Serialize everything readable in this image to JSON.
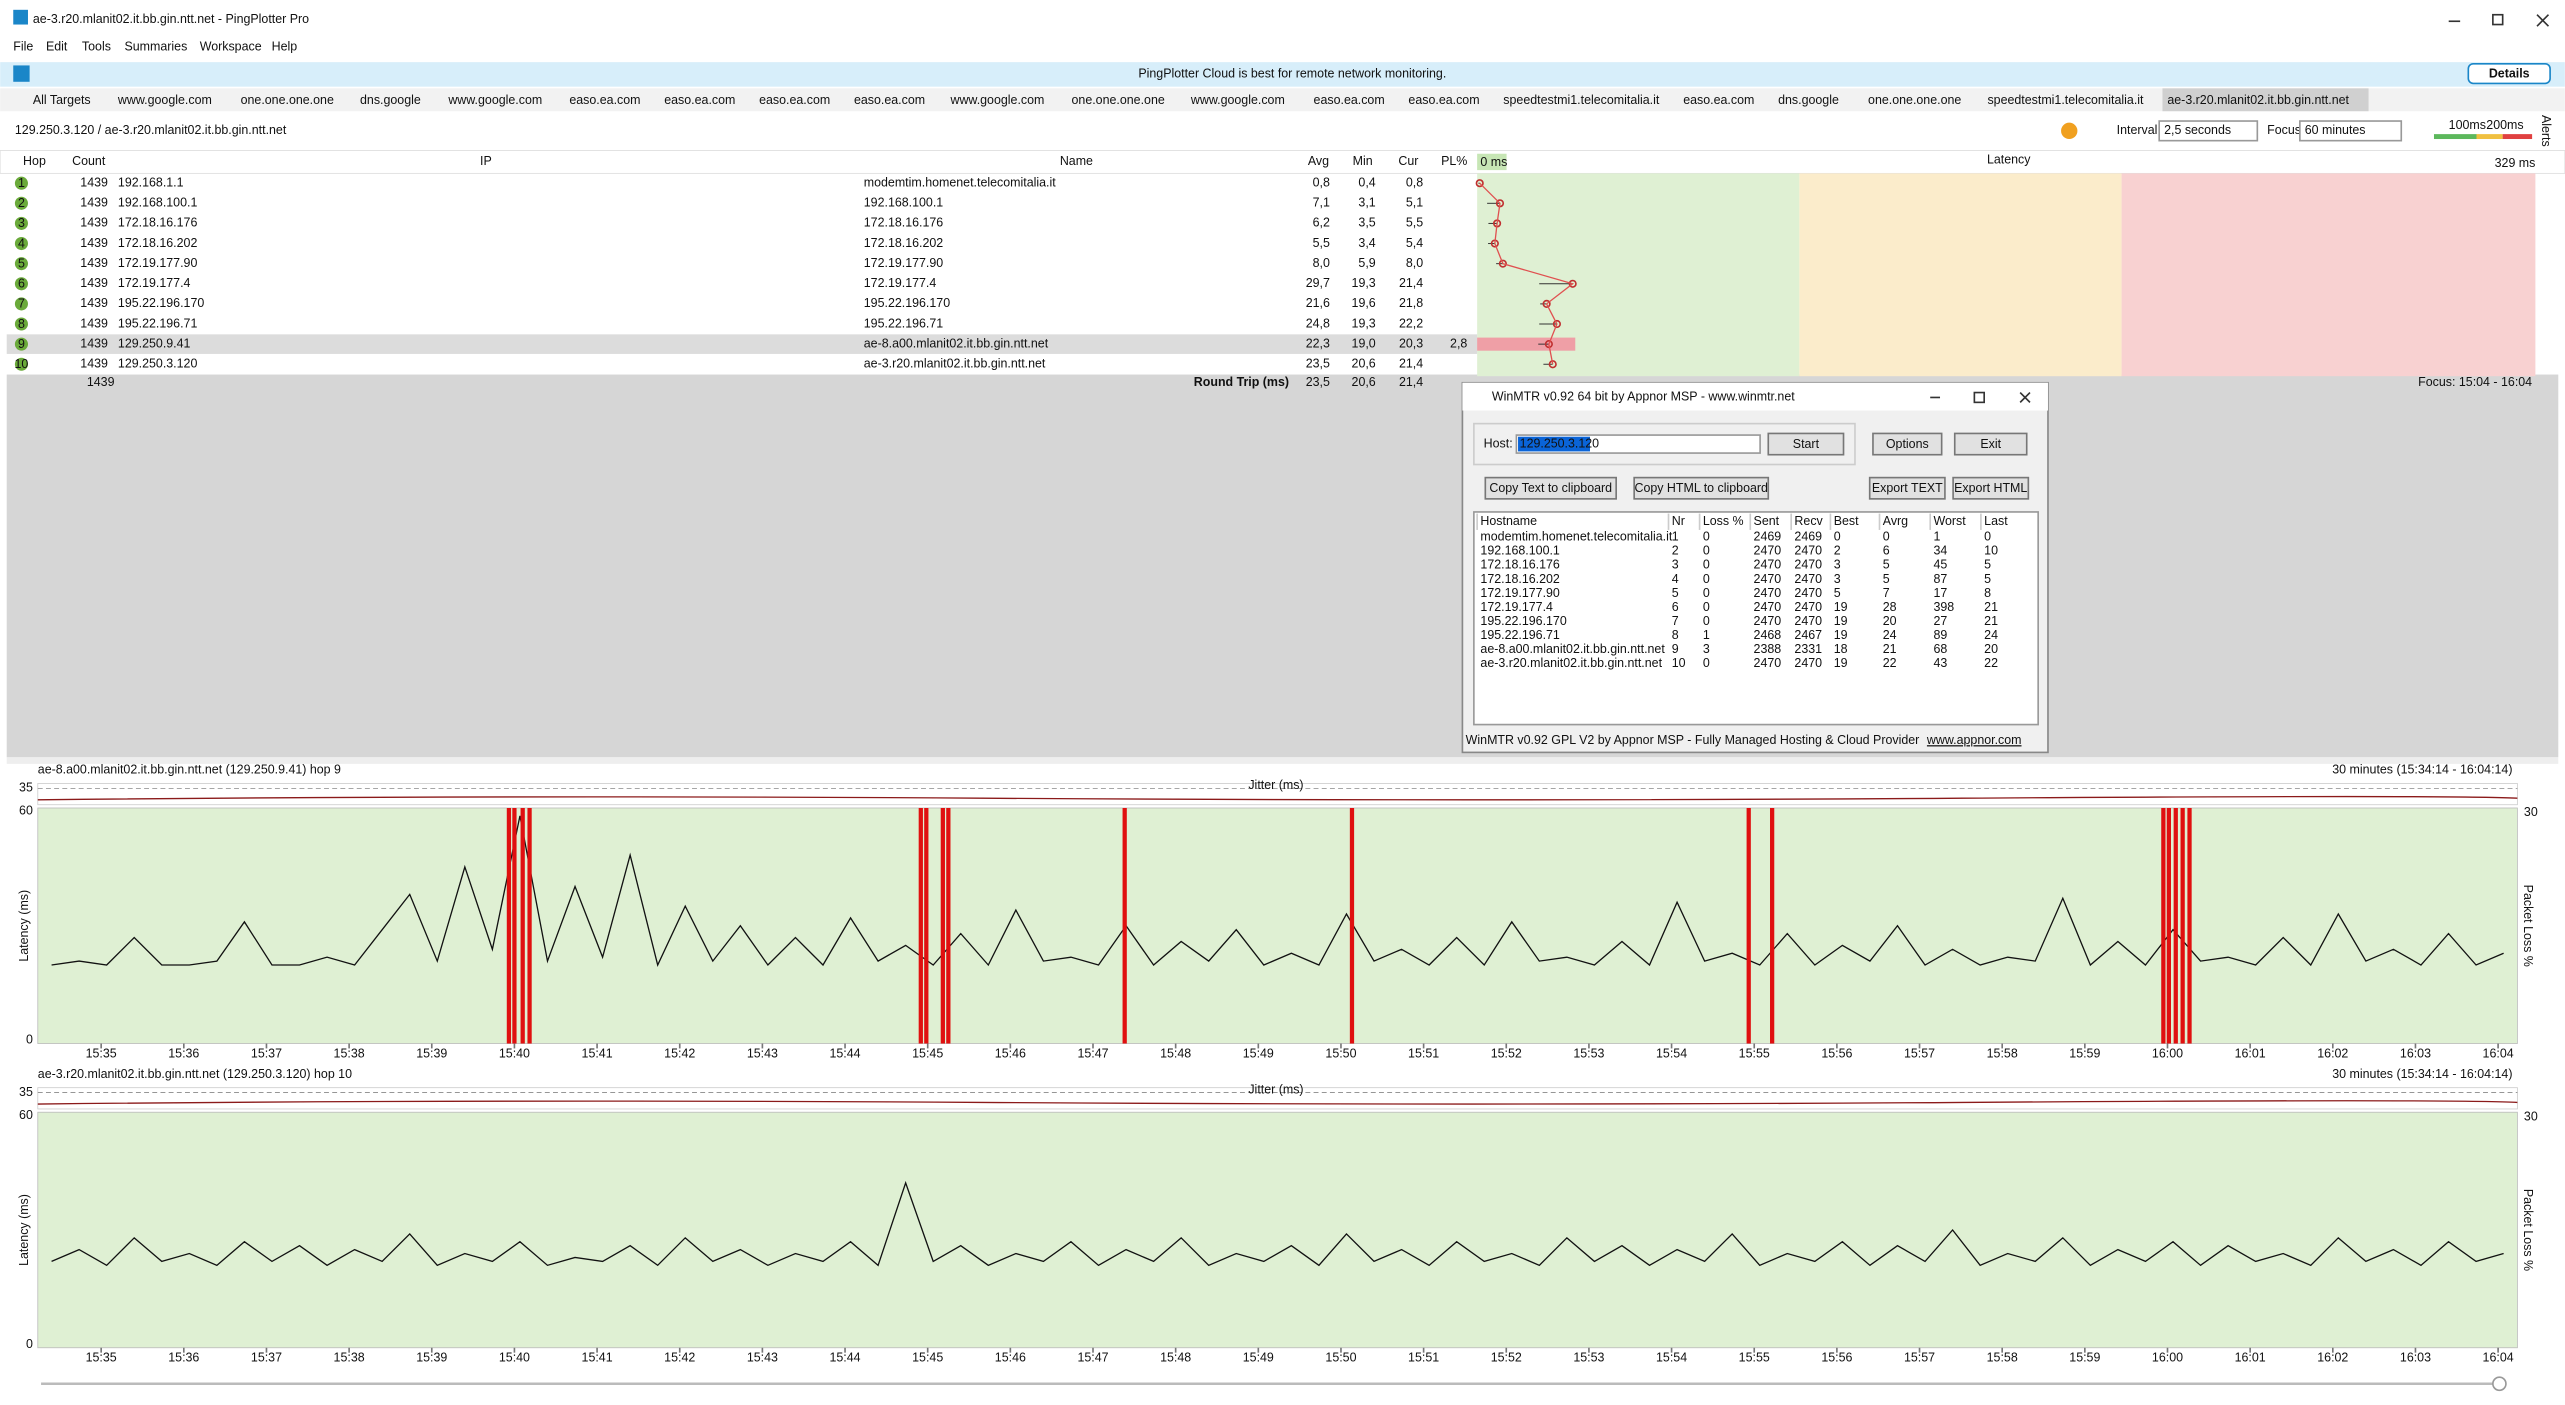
{
  "window": {
    "title": "ae-3.r20.mlanit02.it.bb.gin.ntt.net - PingPlotter Pro",
    "menu": [
      "File",
      "Edit",
      "Tools",
      "Summaries",
      "Workspace",
      "Help"
    ]
  },
  "banner": {
    "text": "PingPlotter Cloud is best for remote network monitoring.",
    "button": "Details"
  },
  "tabs": {
    "all": "All Targets",
    "items": [
      "www.google.com",
      "one.one.one.one",
      "dns.google",
      "www.google.com",
      "easo.ea.com",
      "easo.ea.com",
      "easo.ea.com",
      "easo.ea.com",
      "www.google.com",
      "one.one.one.one",
      "www.google.com",
      "easo.ea.com",
      "easo.ea.com",
      "speedtestmi1.telecomitalia.it",
      "easo.ea.com",
      "dns.google",
      "one.one.one.one",
      "speedtestmi1.telecomitalia.it",
      "ae-3.r20.mlanit02.it.bb.gin.ntt.net"
    ]
  },
  "toolbar": {
    "breadcrumb": "129.250.3.120 / ae-3.r20.mlanit02.it.bb.gin.ntt.net",
    "interval_label": "Interval",
    "interval": "2,5 seconds",
    "focus_label": "Focus",
    "focus": "60 minutes",
    "legend": [
      "100ms",
      "200ms"
    ],
    "alerts": "Alerts"
  },
  "hops": {
    "headers": [
      "Hop",
      "Count",
      "IP",
      "Name",
      "Avg",
      "Min",
      "Cur",
      "PL%"
    ],
    "latency_header": {
      "min": "0 ms",
      "title": "Latency",
      "max": "329 ms",
      "min_value": 0,
      "max_value": 329
    },
    "rows": [
      [
        "1",
        "1439",
        "192.168.1.1",
        "modemtim.homenet.telecomitalia.it",
        "0,8",
        "0,4",
        "0,8",
        null
      ],
      [
        "2",
        "1439",
        "192.168.100.1",
        "192.168.100.1",
        "7,1",
        "3,1",
        "5,1",
        null
      ],
      [
        "3",
        "1439",
        "172.18.16.176",
        "172.18.16.176",
        "6,2",
        "3,5",
        "5,5",
        null
      ],
      [
        "4",
        "1439",
        "172.18.16.202",
        "172.18.16.202",
        "5,5",
        "3,4",
        "5,4",
        null
      ],
      [
        "5",
        "1439",
        "172.19.177.90",
        "172.19.177.90",
        "8,0",
        "5,9",
        "8,0",
        null
      ],
      [
        "6",
        "1439",
        "172.19.177.4",
        "172.19.177.4",
        "29,7",
        "19,3",
        "21,4",
        null
      ],
      [
        "7",
        "1439",
        "195.22.196.170",
        "195.22.196.170",
        "21,6",
        "19,6",
        "21,8",
        null
      ],
      [
        "8",
        "1439",
        "195.22.196.71",
        "195.22.196.71",
        "24,8",
        "19,3",
        "22,2",
        null
      ],
      [
        "9",
        "1439",
        "129.250.9.41",
        "ae-8.a00.mlanit02.it.bb.gin.ntt.net",
        "22,3",
        "19,0",
        "20,3",
        "2,8"
      ],
      [
        "10",
        "1439",
        "129.250.3.120",
        "ae-3.r20.mlanit02.it.bb.gin.ntt.net",
        "23,5",
        "20,6",
        "21,4",
        null
      ]
    ],
    "round_trip": {
      "count": "1439",
      "label": "Round Trip (ms)",
      "avg": "23,5",
      "min": "20,6",
      "cur": "21,4"
    },
    "focus": "Focus: 15:04 - 16:04"
  },
  "winmtr": {
    "title": "WinMTR v0.92 64 bit by Appnor MSP - www.winmtr.net",
    "host_label": "Host:",
    "host": "129.250.3.120",
    "buttons": [
      "Start",
      "Options",
      "Exit",
      "Copy Text to clipboard",
      "Copy HTML to clipboard",
      "Export TEXT",
      "Export HTML"
    ],
    "headers": [
      "Hostname",
      "Nr",
      "Loss %",
      "Sent",
      "Recv",
      "Best",
      "Avrg",
      "Worst",
      "Last"
    ],
    "rows": [
      [
        "modemtim.homenet.telecomitalia.it",
        "1",
        "0",
        "2469",
        "2469",
        "0",
        "0",
        "1",
        "0"
      ],
      [
        "192.168.100.1",
        "2",
        "0",
        "2470",
        "2470",
        "2",
        "6",
        "34",
        "10"
      ],
      [
        "172.18.16.176",
        "3",
        "0",
        "2470",
        "2470",
        "3",
        "5",
        "45",
        "5"
      ],
      [
        "172.18.16.202",
        "4",
        "0",
        "2470",
        "2470",
        "3",
        "5",
        "87",
        "5"
      ],
      [
        "172.19.177.90",
        "5",
        "0",
        "2470",
        "2470",
        "5",
        "7",
        "17",
        "8"
      ],
      [
        "172.19.177.4",
        "6",
        "0",
        "2470",
        "2470",
        "19",
        "28",
        "398",
        "21"
      ],
      [
        "195.22.196.170",
        "7",
        "0",
        "2470",
        "2470",
        "19",
        "20",
        "27",
        "21"
      ],
      [
        "195.22.196.71",
        "8",
        "1",
        "2468",
        "2467",
        "19",
        "24",
        "89",
        "24"
      ],
      [
        "ae-8.a00.mlanit02.it.bb.gin.ntt.net",
        "9",
        "3",
        "2388",
        "2331",
        "18",
        "21",
        "68",
        "20"
      ],
      [
        "ae-3.r20.mlanit02.it.bb.gin.ntt.net",
        "10",
        "0",
        "2470",
        "2470",
        "19",
        "22",
        "43",
        "22"
      ]
    ],
    "footer": "WinMTR v0.92 GPL V2 by Appnor MSP - Fully Managed Hosting & Cloud Provider",
    "link": "www.appnor.com"
  },
  "graphs": [
    {
      "title": "ae-8.a00.mlanit02.it.bb.gin.ntt.net (129.250.9.41) hop 9",
      "range": "30 minutes (15:34:14 - 16:04:14)",
      "xlim": [
        "15:34:14",
        "16:04:14"
      ],
      "jitter_label": "Jitter (ms)",
      "jitter_max": 35,
      "y_label": "Latency (ms)",
      "ylim": [
        0,
        60
      ],
      "y2_label": "Packet Loss %",
      "y2_max": 30,
      "xticks": [
        "15:35",
        "15:36",
        "15:37",
        "15:38",
        "15:39",
        "15:40",
        "15:41",
        "15:42",
        "15:43",
        "15:44",
        "15:45",
        "15:46",
        "15:47",
        "15:48",
        "15:49",
        "15:50",
        "15:51",
        "15:52",
        "15:53",
        "15:54",
        "15:55",
        "15:56",
        "15:57",
        "15:58",
        "15:59",
        "16:00",
        "16:01",
        "16:02",
        "16:03",
        "16:04"
      ],
      "latency": [
        20,
        21,
        20,
        27,
        20,
        20,
        21,
        31,
        20,
        20,
        22,
        20,
        29,
        38,
        21,
        45,
        24,
        58,
        21,
        40,
        22,
        48,
        20,
        35,
        21,
        30,
        20,
        27,
        20,
        32,
        21,
        25,
        20,
        28,
        20,
        34,
        21,
        22,
        20,
        30,
        20,
        26,
        21,
        29,
        20,
        23,
        20,
        33,
        21,
        24,
        20,
        27,
        20,
        31,
        21,
        22,
        20,
        26,
        20,
        36,
        21,
        23,
        20,
        28,
        20,
        25,
        21,
        30,
        20,
        24,
        20,
        22,
        21,
        37,
        20,
        26,
        20,
        29,
        21,
        22,
        20,
        27,
        20,
        33,
        21,
        24,
        20,
        28,
        20,
        23
      ],
      "loss_times": [
        "15:39:56",
        "15:40:00",
        "15:40:06",
        "15:40:11",
        "15:44:55",
        "15:44:59",
        "15:45:11",
        "15:45:15",
        "15:47:23",
        "15:50:08",
        "15:54:56",
        "15:55:13",
        "15:59:57",
        "16:00:01",
        "16:00:06",
        "16:00:11",
        "16:00:16"
      ]
    },
    {
      "title": "ae-3.r20.mlanit02.it.bb.gin.ntt.net (129.250.3.120) hop 10",
      "range": "30 minutes (15:34:14 - 16:04:14)",
      "xlim": [
        "15:34:14",
        "16:04:14"
      ],
      "jitter_label": "Jitter (ms)",
      "jitter_max": 35,
      "y_label": "Latency (ms)",
      "ylim": [
        0,
        60
      ],
      "y2_label": "Packet Loss %",
      "y2_max": 30,
      "xticks": [
        "15:35",
        "15:36",
        "15:37",
        "15:38",
        "15:39",
        "15:40",
        "15:41",
        "15:42",
        "15:43",
        "15:44",
        "15:45",
        "15:46",
        "15:47",
        "15:48",
        "15:49",
        "15:50",
        "15:51",
        "15:52",
        "15:53",
        "15:54",
        "15:55",
        "15:56",
        "15:57",
        "15:58",
        "15:59",
        "16:00",
        "16:01",
        "16:02",
        "16:03",
        "16:04"
      ],
      "latency": [
        22,
        25,
        21,
        28,
        22,
        24,
        21,
        27,
        22,
        26,
        21,
        25,
        22,
        29,
        21,
        24,
        22,
        27,
        21,
        23,
        22,
        26,
        21,
        28,
        22,
        25,
        21,
        24,
        22,
        27,
        21,
        42,
        22,
        26,
        21,
        24,
        22,
        27,
        21,
        25,
        22,
        28,
        21,
        24,
        22,
        26,
        21,
        29,
        22,
        25,
        21,
        27,
        22,
        24,
        21,
        28,
        22,
        26,
        21,
        25,
        22,
        29,
        21,
        24,
        22,
        27,
        21,
        26,
        22,
        30,
        21,
        24,
        22,
        28,
        21,
        25,
        22,
        27,
        21,
        26,
        22,
        24,
        21,
        28,
        22,
        25,
        21,
        27,
        22,
        24
      ],
      "loss_times": []
    }
  ]
}
